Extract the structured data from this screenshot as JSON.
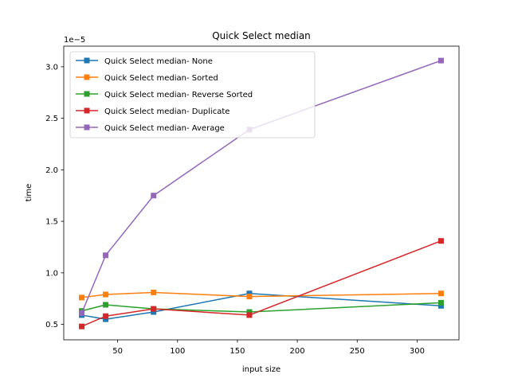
{
  "chart_data": {
    "type": "line",
    "title": "Quick Select median",
    "xlabel": "input size",
    "ylabel": "time",
    "y_offset_label": "1e−5",
    "x": [
      20,
      40,
      80,
      160,
      320
    ],
    "xlim": [
      5,
      335
    ],
    "ylim": [
      0.35,
      3.2
    ],
    "xticks": [
      50,
      100,
      150,
      200,
      250,
      300
    ],
    "yticks": [
      0.5,
      1.0,
      1.5,
      2.0,
      2.5,
      3.0
    ],
    "ytick_labels": [
      "0.5",
      "1.0",
      "1.5",
      "2.0",
      "2.5",
      "3.0"
    ],
    "legend_position": "upper-left",
    "grid": false,
    "series": [
      {
        "name": "Quick Select median- None",
        "color": "#1f77b4",
        "values": [
          0.59,
          0.55,
          0.62,
          0.8,
          0.68
        ]
      },
      {
        "name": "Quick Select median- Sorted",
        "color": "#ff7f0e",
        "values": [
          0.76,
          0.79,
          0.81,
          0.77,
          0.8
        ]
      },
      {
        "name": "Quick Select median- Reverse Sorted",
        "color": "#2ca02c",
        "values": [
          0.63,
          0.69,
          0.65,
          0.62,
          0.71
        ]
      },
      {
        "name": "Quick Select median- Duplicate",
        "color": "#d62728",
        "values": [
          0.48,
          0.58,
          0.65,
          0.59,
          1.31
        ]
      },
      {
        "name": "Quick Select median- Average",
        "color": "#9467bd",
        "values": [
          0.61,
          1.17,
          1.75,
          2.39,
          3.06
        ]
      }
    ]
  }
}
